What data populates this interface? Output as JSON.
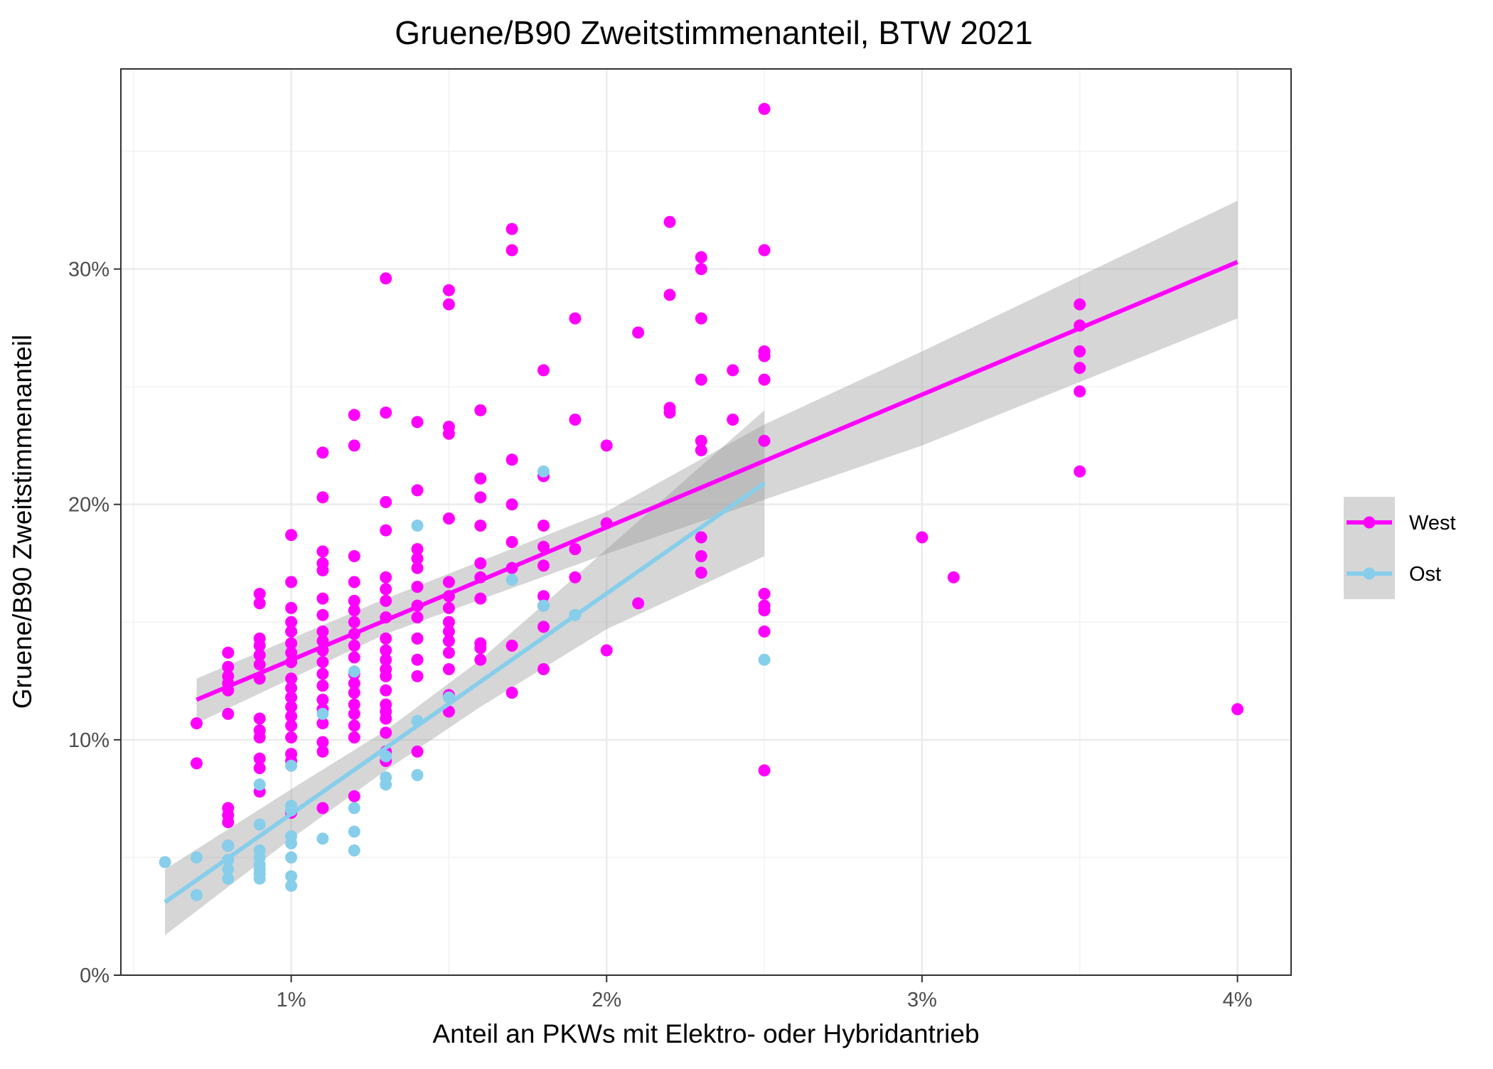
{
  "chart_data": {
    "type": "scatter",
    "title": "Gruene/B90 Zweitstimmenanteil, BTW 2021",
    "xlabel": "Anteil an PKWs mit Elektro- oder Hybridantrieb",
    "ylabel": "Gruene/B90 Zweitstimmenanteil",
    "xlim": [
      0.0046,
      0.0417
    ],
    "ylim": [
      0.0,
      0.385
    ],
    "x_ticks": [
      0.01,
      0.02,
      0.03,
      0.04
    ],
    "x_tick_labels": [
      "1%",
      "2%",
      "3%",
      "4%"
    ],
    "y_ticks": [
      0.0,
      0.1,
      0.2,
      0.3
    ],
    "y_tick_labels": [
      "0%",
      "10%",
      "20%",
      "30%"
    ],
    "grid": true,
    "legend_position": "right",
    "series": [
      {
        "name": "West",
        "color": "#ff00ff",
        "fit": {
          "x": [
            0.007,
            0.04
          ],
          "y": [
            0.117,
            0.303
          ]
        },
        "band": {
          "x": [
            0.007,
            0.013,
            0.02,
            0.025,
            0.03,
            0.04
          ],
          "lower": [
            0.107,
            0.145,
            0.179,
            0.202,
            0.225,
            0.279
          ],
          "upper": [
            0.126,
            0.16,
            0.197,
            0.234,
            0.265,
            0.329
          ]
        },
        "points": [
          [
            0.007,
            0.107
          ],
          [
            0.007,
            0.09
          ],
          [
            0.008,
            0.137
          ],
          [
            0.008,
            0.131
          ],
          [
            0.008,
            0.127
          ],
          [
            0.008,
            0.124
          ],
          [
            0.008,
            0.121
          ],
          [
            0.008,
            0.111
          ],
          [
            0.008,
            0.071
          ],
          [
            0.008,
            0.068
          ],
          [
            0.008,
            0.065
          ],
          [
            0.008,
            0.055
          ],
          [
            0.009,
            0.162
          ],
          [
            0.009,
            0.158
          ],
          [
            0.009,
            0.143
          ],
          [
            0.009,
            0.14
          ],
          [
            0.009,
            0.136
          ],
          [
            0.009,
            0.132
          ],
          [
            0.009,
            0.126
          ],
          [
            0.009,
            0.109
          ],
          [
            0.009,
            0.104
          ],
          [
            0.009,
            0.101
          ],
          [
            0.009,
            0.092
          ],
          [
            0.009,
            0.088
          ],
          [
            0.009,
            0.078
          ],
          [
            0.01,
            0.187
          ],
          [
            0.01,
            0.167
          ],
          [
            0.01,
            0.156
          ],
          [
            0.01,
            0.15
          ],
          [
            0.01,
            0.146
          ],
          [
            0.01,
            0.141
          ],
          [
            0.01,
            0.137
          ],
          [
            0.01,
            0.133
          ],
          [
            0.01,
            0.126
          ],
          [
            0.01,
            0.122
          ],
          [
            0.01,
            0.118
          ],
          [
            0.01,
            0.114
          ],
          [
            0.01,
            0.11
          ],
          [
            0.01,
            0.106
          ],
          [
            0.01,
            0.101
          ],
          [
            0.01,
            0.094
          ],
          [
            0.01,
            0.091
          ],
          [
            0.01,
            0.069
          ],
          [
            0.011,
            0.222
          ],
          [
            0.011,
            0.203
          ],
          [
            0.011,
            0.18
          ],
          [
            0.011,
            0.175
          ],
          [
            0.011,
            0.172
          ],
          [
            0.011,
            0.16
          ],
          [
            0.011,
            0.153
          ],
          [
            0.011,
            0.146
          ],
          [
            0.011,
            0.142
          ],
          [
            0.011,
            0.138
          ],
          [
            0.011,
            0.133
          ],
          [
            0.011,
            0.128
          ],
          [
            0.011,
            0.123
          ],
          [
            0.011,
            0.117
          ],
          [
            0.011,
            0.113
          ],
          [
            0.011,
            0.107
          ],
          [
            0.011,
            0.099
          ],
          [
            0.011,
            0.095
          ],
          [
            0.011,
            0.071
          ],
          [
            0.012,
            0.238
          ],
          [
            0.012,
            0.225
          ],
          [
            0.012,
            0.178
          ],
          [
            0.012,
            0.167
          ],
          [
            0.012,
            0.159
          ],
          [
            0.012,
            0.155
          ],
          [
            0.012,
            0.15
          ],
          [
            0.012,
            0.145
          ],
          [
            0.012,
            0.14
          ],
          [
            0.012,
            0.135
          ],
          [
            0.012,
            0.128
          ],
          [
            0.012,
            0.124
          ],
          [
            0.012,
            0.12
          ],
          [
            0.012,
            0.115
          ],
          [
            0.012,
            0.111
          ],
          [
            0.012,
            0.106
          ],
          [
            0.012,
            0.101
          ],
          [
            0.012,
            0.076
          ],
          [
            0.013,
            0.296
          ],
          [
            0.013,
            0.239
          ],
          [
            0.013,
            0.201
          ],
          [
            0.013,
            0.189
          ],
          [
            0.013,
            0.169
          ],
          [
            0.013,
            0.164
          ],
          [
            0.013,
            0.159
          ],
          [
            0.013,
            0.152
          ],
          [
            0.013,
            0.143
          ],
          [
            0.013,
            0.138
          ],
          [
            0.013,
            0.134
          ],
          [
            0.013,
            0.13
          ],
          [
            0.013,
            0.127
          ],
          [
            0.013,
            0.121
          ],
          [
            0.013,
            0.115
          ],
          [
            0.013,
            0.112
          ],
          [
            0.013,
            0.109
          ],
          [
            0.013,
            0.103
          ],
          [
            0.013,
            0.095
          ],
          [
            0.013,
            0.091
          ],
          [
            0.014,
            0.235
          ],
          [
            0.014,
            0.206
          ],
          [
            0.014,
            0.181
          ],
          [
            0.014,
            0.177
          ],
          [
            0.014,
            0.173
          ],
          [
            0.014,
            0.165
          ],
          [
            0.014,
            0.157
          ],
          [
            0.014,
            0.152
          ],
          [
            0.014,
            0.143
          ],
          [
            0.014,
            0.134
          ],
          [
            0.014,
            0.127
          ],
          [
            0.014,
            0.095
          ],
          [
            0.015,
            0.291
          ],
          [
            0.015,
            0.285
          ],
          [
            0.015,
            0.233
          ],
          [
            0.015,
            0.23
          ],
          [
            0.015,
            0.194
          ],
          [
            0.015,
            0.167
          ],
          [
            0.015,
            0.161
          ],
          [
            0.015,
            0.156
          ],
          [
            0.015,
            0.15
          ],
          [
            0.015,
            0.146
          ],
          [
            0.015,
            0.142
          ],
          [
            0.015,
            0.137
          ],
          [
            0.015,
            0.13
          ],
          [
            0.015,
            0.119
          ],
          [
            0.015,
            0.112
          ],
          [
            0.016,
            0.24
          ],
          [
            0.016,
            0.211
          ],
          [
            0.016,
            0.203
          ],
          [
            0.016,
            0.191
          ],
          [
            0.016,
            0.175
          ],
          [
            0.016,
            0.169
          ],
          [
            0.016,
            0.16
          ],
          [
            0.016,
            0.141
          ],
          [
            0.016,
            0.139
          ],
          [
            0.016,
            0.134
          ],
          [
            0.017,
            0.317
          ],
          [
            0.017,
            0.308
          ],
          [
            0.017,
            0.219
          ],
          [
            0.017,
            0.2
          ],
          [
            0.017,
            0.184
          ],
          [
            0.017,
            0.173
          ],
          [
            0.017,
            0.14
          ],
          [
            0.017,
            0.12
          ],
          [
            0.018,
            0.257
          ],
          [
            0.018,
            0.212
          ],
          [
            0.018,
            0.191
          ],
          [
            0.018,
            0.182
          ],
          [
            0.018,
            0.174
          ],
          [
            0.018,
            0.161
          ],
          [
            0.018,
            0.157
          ],
          [
            0.018,
            0.148
          ],
          [
            0.018,
            0.13
          ],
          [
            0.019,
            0.279
          ],
          [
            0.019,
            0.236
          ],
          [
            0.019,
            0.181
          ],
          [
            0.019,
            0.169
          ],
          [
            0.02,
            0.225
          ],
          [
            0.02,
            0.192
          ],
          [
            0.02,
            0.138
          ],
          [
            0.021,
            0.273
          ],
          [
            0.021,
            0.158
          ],
          [
            0.022,
            0.32
          ],
          [
            0.022,
            0.289
          ],
          [
            0.022,
            0.241
          ],
          [
            0.022,
            0.239
          ],
          [
            0.023,
            0.305
          ],
          [
            0.023,
            0.3
          ],
          [
            0.023,
            0.279
          ],
          [
            0.023,
            0.253
          ],
          [
            0.023,
            0.227
          ],
          [
            0.023,
            0.223
          ],
          [
            0.023,
            0.186
          ],
          [
            0.023,
            0.178
          ],
          [
            0.023,
            0.171
          ],
          [
            0.024,
            0.257
          ],
          [
            0.024,
            0.236
          ],
          [
            0.025,
            0.368
          ],
          [
            0.025,
            0.308
          ],
          [
            0.025,
            0.265
          ],
          [
            0.025,
            0.263
          ],
          [
            0.025,
            0.253
          ],
          [
            0.025,
            0.227
          ],
          [
            0.025,
            0.162
          ],
          [
            0.025,
            0.157
          ],
          [
            0.025,
            0.155
          ],
          [
            0.025,
            0.146
          ],
          [
            0.025,
            0.087
          ],
          [
            0.03,
            0.186
          ],
          [
            0.031,
            0.169
          ],
          [
            0.035,
            0.285
          ],
          [
            0.035,
            0.276
          ],
          [
            0.035,
            0.265
          ],
          [
            0.035,
            0.258
          ],
          [
            0.035,
            0.248
          ],
          [
            0.035,
            0.214
          ],
          [
            0.04,
            0.113
          ]
        ]
      },
      {
        "name": "Ost",
        "color": "#87ceeb",
        "fit": {
          "x": [
            0.006,
            0.025
          ],
          "y": [
            0.031,
            0.209
          ]
        },
        "band": {
          "x": [
            0.006,
            0.01,
            0.013,
            0.016,
            0.02,
            0.025
          ],
          "lower": [
            0.017,
            0.058,
            0.087,
            0.114,
            0.147,
            0.178
          ],
          "upper": [
            0.045,
            0.079,
            0.104,
            0.134,
            0.181,
            0.24
          ]
        },
        "points": [
          [
            0.006,
            0.048
          ],
          [
            0.007,
            0.05
          ],
          [
            0.007,
            0.034
          ],
          [
            0.008,
            0.055
          ],
          [
            0.008,
            0.049
          ],
          [
            0.008,
            0.045
          ],
          [
            0.008,
            0.041
          ],
          [
            0.009,
            0.081
          ],
          [
            0.009,
            0.064
          ],
          [
            0.009,
            0.053
          ],
          [
            0.009,
            0.05
          ],
          [
            0.009,
            0.047
          ],
          [
            0.009,
            0.045
          ],
          [
            0.009,
            0.043
          ],
          [
            0.009,
            0.041
          ],
          [
            0.01,
            0.089
          ],
          [
            0.01,
            0.072
          ],
          [
            0.01,
            0.07
          ],
          [
            0.01,
            0.059
          ],
          [
            0.01,
            0.056
          ],
          [
            0.01,
            0.05
          ],
          [
            0.01,
            0.042
          ],
          [
            0.01,
            0.038
          ],
          [
            0.011,
            0.111
          ],
          [
            0.011,
            0.058
          ],
          [
            0.012,
            0.129
          ],
          [
            0.012,
            0.071
          ],
          [
            0.012,
            0.061
          ],
          [
            0.012,
            0.053
          ],
          [
            0.013,
            0.093
          ],
          [
            0.013,
            0.084
          ],
          [
            0.013,
            0.081
          ],
          [
            0.014,
            0.191
          ],
          [
            0.014,
            0.108
          ],
          [
            0.014,
            0.085
          ],
          [
            0.015,
            0.118
          ],
          [
            0.017,
            0.168
          ],
          [
            0.018,
            0.214
          ],
          [
            0.018,
            0.157
          ],
          [
            0.019,
            0.153
          ],
          [
            0.025,
            0.134
          ]
        ]
      }
    ]
  }
}
